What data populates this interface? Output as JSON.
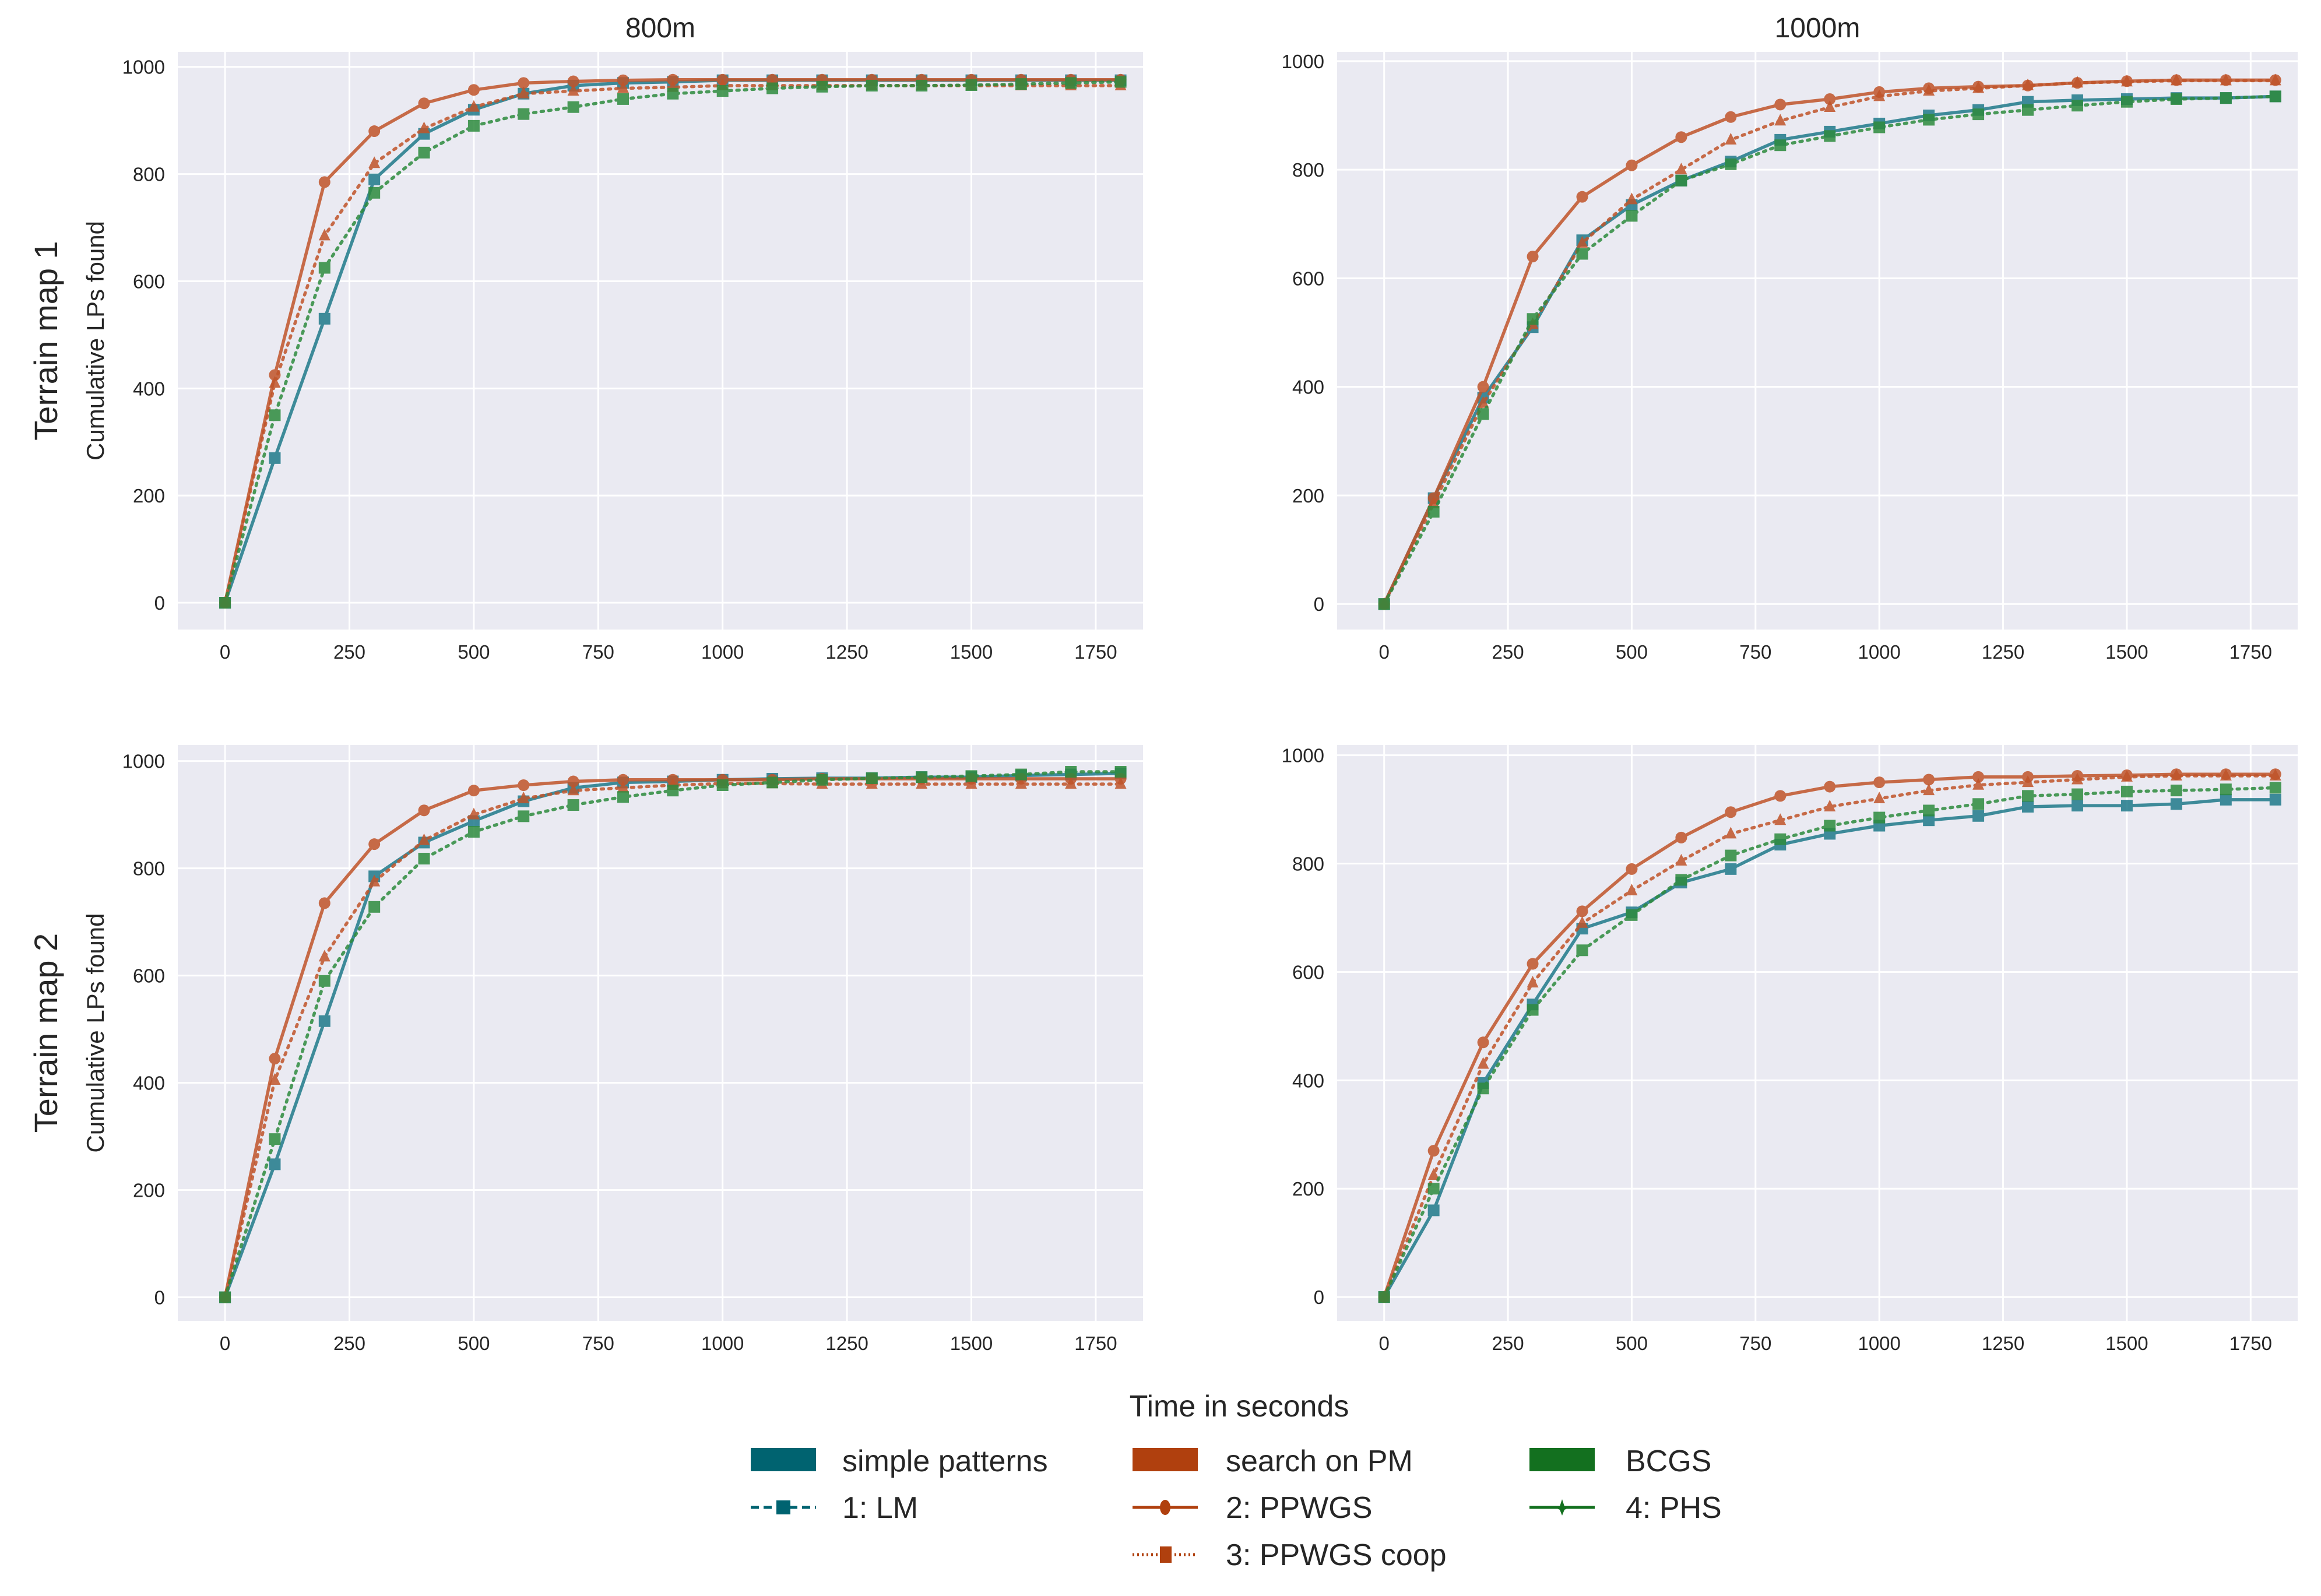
{
  "chart_data": {
    "type": "line",
    "xlabel": "Time in seconds",
    "ylabel": "Cumulative LPs found",
    "grid": true,
    "legend_placement": "bottom-center",
    "x": [
      0,
      100,
      200,
      300,
      400,
      500,
      600,
      700,
      800,
      900,
      1000,
      1100,
      1200,
      1300,
      1400,
      1500,
      1600,
      1700,
      1800
    ],
    "xticks": [
      0,
      250,
      500,
      750,
      1000,
      1250,
      1500,
      1750
    ],
    "yticks": [
      0,
      200,
      400,
      600,
      800,
      1000
    ],
    "xlim": [
      -95,
      1845
    ],
    "legend": {
      "groups": [
        {
          "label": "simple patterns",
          "color": "#006370"
        },
        {
          "label": "search on PM",
          "color": "#b0400e"
        },
        {
          "label": "BCGS",
          "color": "#13701f"
        }
      ],
      "series": [
        {
          "key": "lm",
          "label": "1: LM",
          "color": "#1f7a8a",
          "marker": "square",
          "dash": "dashed"
        },
        {
          "key": "ppwgs",
          "label": "2: PPWGS",
          "color": "#c0542a",
          "marker": "circle",
          "dash": "solid"
        },
        {
          "key": "coop",
          "label": "3: PPWGS coop",
          "color": "#c0542a",
          "marker": "triangle",
          "dash": "dotted"
        },
        {
          "key": "phs",
          "label": "4: PHS",
          "color": "#2e8b3e",
          "marker": "square",
          "dash": "dotted"
        }
      ]
    },
    "panels": [
      {
        "title": "800m",
        "row_label": "Terrain map 1",
        "ylim": [
          -50,
          1028
        ],
        "series": {
          "lm": [
            0,
            270,
            530,
            790,
            875,
            920,
            950,
            965,
            970,
            972,
            975,
            975,
            975,
            975,
            975,
            975,
            975,
            975,
            975
          ],
          "ppwgs": [
            0,
            425,
            785,
            880,
            932,
            957,
            970,
            973,
            975,
            976,
            976,
            976,
            976,
            976,
            976,
            976,
            976,
            976,
            976
          ],
          "coop": [
            0,
            410,
            685,
            820,
            885,
            925,
            950,
            955,
            960,
            962,
            965,
            965,
            965,
            965,
            965,
            965,
            965,
            965,
            965
          ],
          "phs": [
            0,
            350,
            625,
            765,
            840,
            890,
            912,
            925,
            940,
            950,
            955,
            960,
            963,
            965,
            965,
            966,
            968,
            970,
            972
          ]
        }
      },
      {
        "title": "1000m",
        "row_label": "",
        "ylim": [
          -47,
          1017
        ],
        "series": {
          "lm": [
            0,
            195,
            380,
            510,
            670,
            735,
            780,
            815,
            855,
            870,
            885,
            900,
            910,
            925,
            928,
            930,
            932,
            932,
            935
          ],
          "ppwgs": [
            0,
            195,
            400,
            640,
            750,
            808,
            860,
            897,
            920,
            930,
            943,
            950,
            953,
            955,
            960,
            963,
            965,
            965,
            965
          ],
          "coop": [
            0,
            185,
            370,
            515,
            665,
            745,
            800,
            855,
            890,
            915,
            935,
            945,
            950,
            955,
            960,
            962,
            964,
            964,
            964
          ],
          "phs": [
            0,
            170,
            350,
            525,
            645,
            715,
            780,
            810,
            845,
            862,
            878,
            892,
            902,
            910,
            918,
            925,
            930,
            932,
            935
          ]
        }
      },
      {
        "title": "",
        "row_label": "Terrain map 2",
        "ylim": [
          -44,
          1030
        ],
        "series": {
          "lm": [
            0,
            248,
            515,
            785,
            848,
            888,
            925,
            950,
            960,
            962,
            965,
            967,
            968,
            968,
            970,
            970,
            973,
            975,
            977
          ],
          "ppwgs": [
            0,
            445,
            735,
            845,
            908,
            945,
            955,
            962,
            965,
            965,
            965,
            965,
            967,
            967,
            967,
            967,
            967,
            967,
            967
          ],
          "coop": [
            0,
            405,
            635,
            775,
            852,
            900,
            930,
            945,
            950,
            955,
            958,
            958,
            957,
            957,
            957,
            957,
            957,
            957,
            957
          ],
          "phs": [
            0,
            295,
            590,
            728,
            818,
            868,
            897,
            918,
            933,
            945,
            955,
            960,
            965,
            968,
            970,
            972,
            975,
            980,
            980
          ]
        }
      },
      {
        "title": "",
        "row_label": "",
        "ylim": [
          -44,
          1019
        ],
        "series": {
          "lm": [
            0,
            160,
            395,
            540,
            680,
            710,
            765,
            790,
            835,
            855,
            870,
            880,
            888,
            905,
            907,
            907,
            910,
            918,
            918
          ],
          "ppwgs": [
            0,
            270,
            470,
            615,
            712,
            790,
            848,
            895,
            925,
            942,
            950,
            955,
            960,
            960,
            962,
            963,
            965,
            965,
            965
          ],
          "coop": [
            0,
            225,
            430,
            580,
            690,
            750,
            805,
            855,
            880,
            905,
            920,
            935,
            945,
            950,
            955,
            960,
            962,
            962,
            962
          ],
          "phs": [
            0,
            200,
            385,
            530,
            640,
            705,
            770,
            815,
            845,
            870,
            885,
            898,
            910,
            925,
            928,
            933,
            935,
            937,
            940
          ]
        }
      }
    ]
  }
}
